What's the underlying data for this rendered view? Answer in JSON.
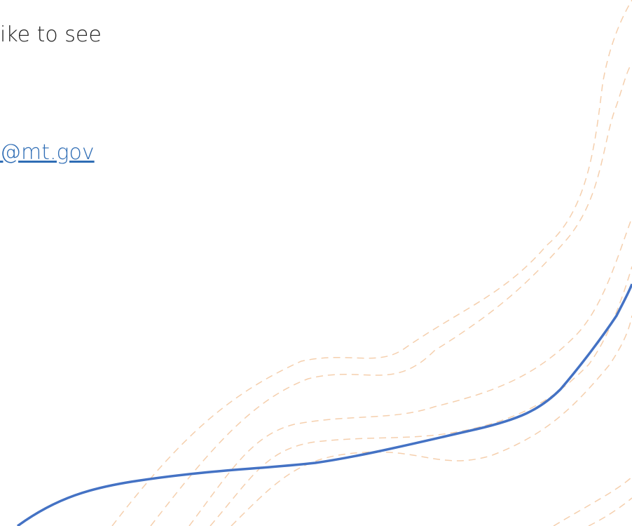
{
  "body": {
    "line1": "ike to see",
    "email": "@mt.gov"
  }
}
